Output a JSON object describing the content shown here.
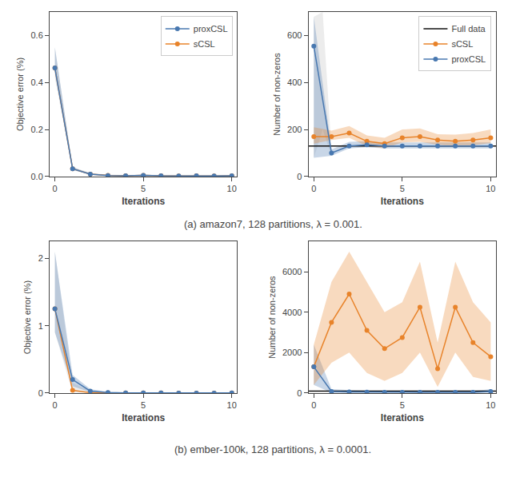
{
  "chart_data": [
    {
      "type": "line",
      "xlabel": "Iterations",
      "ylabel": "Objective error (%)",
      "x": [
        0,
        1,
        2,
        3,
        4,
        5,
        6,
        7,
        8,
        9,
        10
      ],
      "xlim": [
        -0.3,
        10.3
      ],
      "xticks": [
        0,
        5,
        10
      ],
      "ylim": [
        0,
        0.7
      ],
      "yticks": [
        {
          "value": 0,
          "label": "0.0"
        },
        0.2,
        0.4,
        0.6
      ],
      "grid": false,
      "legend": "upper right",
      "annotations": [
        "(a) amazon7, 128 partitions, λ = 0.001."
      ],
      "series": [
        {
          "type": "band",
          "color": "#c0c0c0",
          "lower": [
            0.42,
            0.028,
            0.008,
            0.003,
            0.001,
            0.003,
            0.001,
            0.001,
            0.001,
            0.001,
            0.001
          ],
          "upper": [
            0.55,
            0.04,
            0.014,
            0.008,
            0.006,
            0.008,
            0.006,
            0.004,
            0.006,
            0.004,
            0.005
          ]
        },
        {
          "type": "band",
          "color": "#4878b0",
          "lower": [
            0.44,
            0.028,
            0.008,
            0.003,
            0.001,
            0.003,
            0.001,
            0.001,
            0.001,
            0.001,
            0.001
          ],
          "upper": [
            0.55,
            0.04,
            0.014,
            0.007,
            0.005,
            0.008,
            0.005,
            0.004,
            0.005,
            0.004,
            0.005
          ]
        },
        {
          "type": "line",
          "name": "sCSL",
          "color": "#e8832a",
          "marker": "circle",
          "values": [
            0.462,
            0.033,
            0.01,
            0.005,
            0.003,
            0.005,
            0.003,
            0.002,
            0.003,
            0.002,
            0.003
          ]
        },
        {
          "type": "line",
          "name": "proxCSL",
          "color": "#4878b0",
          "marker": "circle",
          "values": [
            0.462,
            0.033,
            0.01,
            0.004,
            0.003,
            0.005,
            0.003,
            0.002,
            0.003,
            0.002,
            0.003
          ]
        }
      ]
    },
    {
      "type": "line",
      "xlabel": "Iterations",
      "ylabel": "Number of non-zeros",
      "x": [
        0,
        1,
        2,
        3,
        4,
        5,
        6,
        7,
        8,
        9,
        10
      ],
      "xlim": [
        -0.3,
        10.3
      ],
      "xticks": [
        0,
        5,
        10
      ],
      "ylim": [
        0,
        700
      ],
      "yticks": [
        0,
        200,
        400,
        600
      ],
      "grid": false,
      "legend": "upper right",
      "series": [
        {
          "type": "band",
          "color": "#c0c0c0",
          "x": [
            0,
            0.5,
            1
          ],
          "lower": [
            80,
            200,
            88
          ],
          "upper": [
            680,
            700,
            115
          ]
        },
        {
          "type": "band",
          "color": "#4878b0",
          "lower": [
            80,
            88,
            120,
            125,
            120,
            120,
            120,
            120,
            120,
            120,
            120
          ],
          "upper": [
            680,
            115,
            148,
            150,
            145,
            145,
            145,
            145,
            145,
            145,
            145
          ]
        },
        {
          "type": "band",
          "color": "#e8832a",
          "lower": [
            140,
            155,
            165,
            130,
            120,
            145,
            148,
            135,
            128,
            133,
            143
          ],
          "upper": [
            210,
            195,
            215,
            175,
            165,
            200,
            205,
            180,
            178,
            185,
            200
          ]
        },
        {
          "type": "hline",
          "name": "Full data",
          "color": "#111111",
          "value": 130
        },
        {
          "type": "line",
          "name": "sCSL",
          "color": "#e8832a",
          "marker": "circle",
          "values": [
            170,
            170,
            185,
            150,
            140,
            165,
            170,
            155,
            150,
            155,
            165
          ]
        },
        {
          "type": "line",
          "name": "proxCSL",
          "color": "#4878b0",
          "marker": "circle",
          "values": [
            555,
            100,
            130,
            135,
            130,
            130,
            130,
            130,
            130,
            130,
            130
          ]
        }
      ]
    },
    {
      "type": "line",
      "xlabel": "Iterations",
      "ylabel": "Objective error (%)",
      "x": [
        0,
        1,
        2,
        3,
        4,
        5,
        6,
        7,
        8,
        9,
        10
      ],
      "xlim": [
        -0.3,
        10.3
      ],
      "xticks": [
        0,
        5,
        10
      ],
      "ylim": [
        0,
        2.25
      ],
      "yticks": [
        0,
        1,
        2
      ],
      "grid": false,
      "legend": false,
      "annotations": [
        "(b) ember-100k, 128 partitions, λ = 0.0001."
      ],
      "series": [
        {
          "type": "band",
          "color": "#c0c0c0",
          "lower": [
            0.9,
            0.005,
            0.001,
            0.001,
            0.001,
            0.001,
            0.001,
            0.0,
            0.0,
            0.0,
            0.001
          ],
          "upper": [
            2.1,
            0.15,
            0.03,
            0.01,
            0.007,
            0.006,
            0.005,
            0.004,
            0.004,
            0.004,
            0.006
          ]
        },
        {
          "type": "band",
          "color": "#4878b0",
          "lower": [
            0.9,
            0.1,
            0.015,
            0.003,
            0.001,
            0.001,
            0.001,
            0.0,
            0.0,
            0.0,
            0.001
          ],
          "upper": [
            2.1,
            0.27,
            0.06,
            0.018,
            0.008,
            0.006,
            0.005,
            0.004,
            0.004,
            0.004,
            0.005
          ]
        },
        {
          "type": "line",
          "name": "sCSL",
          "color": "#e8832a",
          "marker": "circle",
          "values": [
            1.25,
            0.04,
            0.006,
            0.003,
            0.002,
            0.002,
            0.002,
            0.001,
            0.001,
            0.001,
            0.002
          ]
        },
        {
          "type": "line",
          "name": "proxCSL",
          "color": "#4878b0",
          "marker": "circle",
          "values": [
            1.25,
            0.2,
            0.03,
            0.008,
            0.003,
            0.002,
            0.002,
            0.001,
            0.001,
            0.001,
            0.002
          ]
        }
      ]
    },
    {
      "type": "line",
      "xlabel": "Iterations",
      "ylabel": "Number of non-zeros",
      "x": [
        0,
        1,
        2,
        3,
        4,
        5,
        6,
        7,
        8,
        9,
        10
      ],
      "xlim": [
        -0.3,
        10.3
      ],
      "xticks": [
        0,
        5,
        10
      ],
      "ylim": [
        0,
        7500
      ],
      "yticks": [
        0,
        2000,
        4000,
        6000
      ],
      "grid": false,
      "legend": false,
      "series": [
        {
          "type": "band",
          "color": "#4878b0",
          "lower": [
            400,
            20,
            10,
            10,
            10,
            10,
            10,
            10,
            10,
            10,
            20
          ],
          "upper": [
            2400,
            200,
            150,
            120,
            100,
            100,
            100,
            100,
            100,
            100,
            200
          ]
        },
        {
          "type": "band",
          "color": "#e8832a",
          "lower": [
            400,
            1500,
            2000,
            1000,
            600,
            1000,
            2000,
            300,
            2000,
            800,
            600
          ],
          "upper": [
            2400,
            5500,
            7000,
            5500,
            4000,
            4500,
            6500,
            2500,
            6500,
            4500,
            3500
          ]
        },
        {
          "type": "hline",
          "name": "Full data",
          "color": "#111111",
          "value": 100
        },
        {
          "type": "line",
          "name": "sCSL",
          "color": "#e8832a",
          "marker": "circle",
          "values": [
            1300,
            3500,
            4900,
            3100,
            2200,
            2750,
            4250,
            1200,
            4250,
            2500,
            1800
          ]
        },
        {
          "type": "line",
          "name": "proxCSL",
          "color": "#4878b0",
          "marker": "circle",
          "values": [
            1300,
            80,
            60,
            50,
            40,
            40,
            40,
            40,
            40,
            40,
            80
          ]
        }
      ]
    }
  ]
}
